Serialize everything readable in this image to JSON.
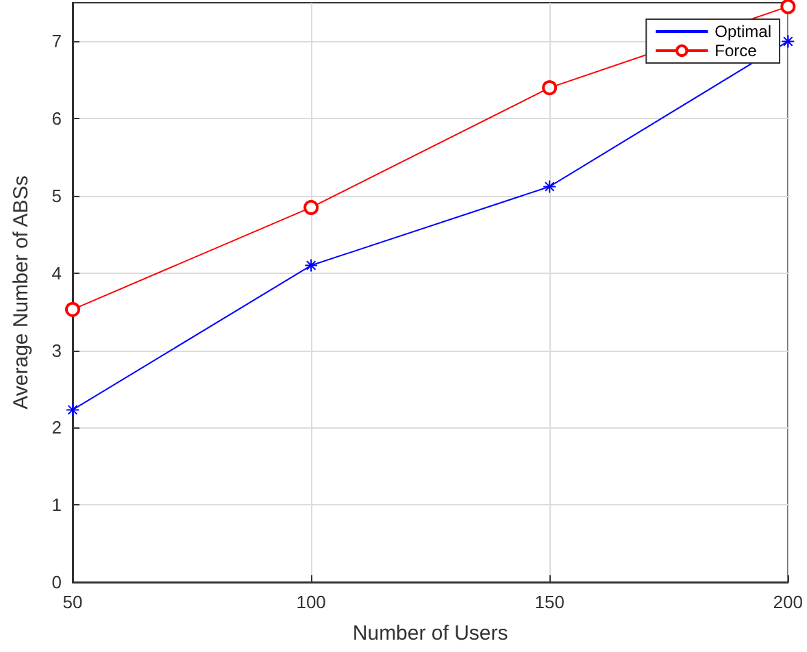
{
  "chart_data": {
    "type": "line",
    "xlabel": "Number of Users",
    "ylabel": "Average Number of ABSs",
    "x": [
      50,
      100,
      150,
      200
    ],
    "xlim": [
      50,
      200
    ],
    "xticks": [
      50,
      100,
      150,
      200
    ],
    "ylim": [
      0,
      7.5
    ],
    "yticks": [
      0,
      1,
      2,
      3,
      4,
      5,
      6,
      7
    ],
    "series": [
      {
        "name": "Optimal",
        "color": "#0000ff",
        "marker": "cross",
        "values": [
          2.23,
          4.1,
          5.12,
          7.0
        ]
      },
      {
        "name": "Force",
        "color": "#ff0000",
        "marker": "circle",
        "values": [
          3.53,
          4.85,
          6.4,
          7.45
        ]
      }
    ],
    "grid": true,
    "legend": "top right",
    "line_style": "solid"
  }
}
